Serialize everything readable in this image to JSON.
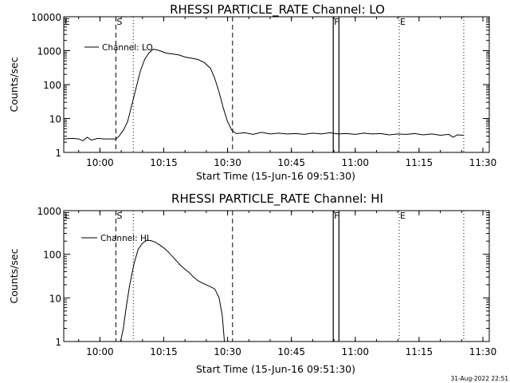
{
  "footer": {
    "timestamp": "31-Aug-2022 22:51"
  },
  "chart_data": [
    {
      "type": "line",
      "title": "RHESSI PARTICLE_RATE Channel: LO",
      "xlabel": "Start Time (15-Jun-16 09:51:30)",
      "ylabel": "Counts/sec",
      "yscale": "log",
      "x_unit": "time HH:MM",
      "xlim": [
        "09:51:30",
        "11:31:30"
      ],
      "ylim": [
        1,
        10000
      ],
      "x_ticks": [
        "10:00",
        "10:15",
        "10:30",
        "10:45",
        "11:00",
        "11:15",
        "11:30"
      ],
      "y_ticks": [
        {
          "value": 1,
          "label": "1"
        },
        {
          "value": 10,
          "label": "10"
        },
        {
          "value": 100,
          "label": "100"
        },
        {
          "value": 1000,
          "label": "1000"
        },
        {
          "value": 10000,
          "label": "10000"
        }
      ],
      "grid": false,
      "legend": {
        "position": "top-left",
        "entries": [
          "Channel: LO"
        ]
      },
      "markers": [
        {
          "label": "E",
          "x": "09:51:30",
          "style": "none"
        },
        {
          "label": "S",
          "x": "10:03:45",
          "style": "dashed"
        },
        {
          "label": "",
          "x": "10:07:50",
          "style": "dotted"
        },
        {
          "label": "",
          "x": "10:31:10",
          "style": "dashed"
        },
        {
          "label": "F",
          "x": "10:54:50",
          "style": "solid"
        },
        {
          "label": "",
          "x": "10:56:10",
          "style": "solid"
        },
        {
          "label": "E",
          "x": "11:10:20",
          "style": "dotted"
        },
        {
          "label": "",
          "x": "11:25:30",
          "style": "dotted"
        }
      ],
      "series": [
        {
          "name": "Channel: LO",
          "points": [
            [
              "09:51:30",
              2.5
            ],
            [
              "09:53:30",
              2.6
            ],
            [
              "09:55:00",
              2.5
            ],
            [
              "09:56:00",
              2.2
            ],
            [
              "09:57:00",
              2.8
            ],
            [
              "09:58:00",
              2.3
            ],
            [
              "09:59:30",
              2.6
            ],
            [
              "10:01:00",
              2.5
            ],
            [
              "10:02:30",
              2.5
            ],
            [
              "10:03:45",
              2.5
            ],
            [
              "10:04:30",
              3.0
            ],
            [
              "10:05:30",
              4.5
            ],
            [
              "10:06:30",
              8
            ],
            [
              "10:07:30",
              25
            ],
            [
              "10:08:30",
              80
            ],
            [
              "10:09:30",
              250
            ],
            [
              "10:10:30",
              550
            ],
            [
              "10:11:30",
              850
            ],
            [
              "10:12:30",
              1100
            ],
            [
              "10:13:30",
              1050
            ],
            [
              "10:14:30",
              950
            ],
            [
              "10:15:30",
              850
            ],
            [
              "10:17:00",
              800
            ],
            [
              "10:18:30",
              750
            ],
            [
              "10:20:00",
              650
            ],
            [
              "10:21:30",
              600
            ],
            [
              "10:23:00",
              550
            ],
            [
              "10:24:30",
              450
            ],
            [
              "10:26:00",
              300
            ],
            [
              "10:27:00",
              150
            ],
            [
              "10:28:00",
              60
            ],
            [
              "10:29:00",
              20
            ],
            [
              "10:30:00",
              8
            ],
            [
              "10:31:00",
              4.5
            ],
            [
              "10:32:00",
              3.6
            ],
            [
              "10:34:00",
              3.8
            ],
            [
              "10:36:00",
              3.4
            ],
            [
              "10:38:00",
              3.9
            ],
            [
              "10:40:00",
              3.5
            ],
            [
              "10:42:00",
              3.7
            ],
            [
              "10:44:00",
              3.5
            ],
            [
              "10:46:00",
              3.6
            ],
            [
              "10:48:00",
              3.4
            ],
            [
              "10:50:00",
              3.7
            ],
            [
              "10:52:00",
              3.5
            ],
            [
              "10:54:00",
              3.8
            ],
            [
              "10:56:00",
              3.5
            ],
            [
              "10:58:00",
              3.6
            ],
            [
              "11:00:00",
              3.4
            ],
            [
              "11:02:00",
              3.7
            ],
            [
              "11:04:00",
              3.5
            ],
            [
              "11:06:00",
              3.6
            ],
            [
              "11:08:00",
              3.3
            ],
            [
              "11:10:00",
              3.5
            ],
            [
              "11:12:00",
              3.4
            ],
            [
              "11:14:00",
              3.6
            ],
            [
              "11:16:00",
              3.3
            ],
            [
              "11:18:00",
              3.5
            ],
            [
              "11:20:00",
              3.2
            ],
            [
              "11:22:00",
              3.4
            ],
            [
              "11:23:00",
              2.8
            ],
            [
              "11:24:00",
              3.3
            ],
            [
              "11:25:30",
              3.2
            ]
          ]
        }
      ]
    },
    {
      "type": "line",
      "title": "RHESSI PARTICLE_RATE Channel: HI",
      "xlabel": "Start Time (15-Jun-16 09:51:30)",
      "ylabel": "Counts/sec",
      "yscale": "log",
      "x_unit": "time HH:MM",
      "xlim": [
        "09:51:30",
        "11:31:30"
      ],
      "ylim": [
        1,
        1000
      ],
      "x_ticks": [
        "10:00",
        "10:15",
        "10:30",
        "10:45",
        "11:00",
        "11:15",
        "11:30"
      ],
      "y_ticks": [
        {
          "value": 1,
          "label": "1"
        },
        {
          "value": 10,
          "label": "10"
        },
        {
          "value": 100,
          "label": "100"
        },
        {
          "value": 1000,
          "label": "1000"
        }
      ],
      "grid": false,
      "legend": {
        "position": "top-left",
        "entries": [
          "Channel: HI"
        ]
      },
      "markers": [
        {
          "label": "E",
          "x": "09:51:30",
          "style": "none"
        },
        {
          "label": "S",
          "x": "10:03:45",
          "style": "dashed"
        },
        {
          "label": "",
          "x": "10:07:50",
          "style": "dotted"
        },
        {
          "label": "",
          "x": "10:31:10",
          "style": "dashed"
        },
        {
          "label": "F",
          "x": "10:54:50",
          "style": "solid"
        },
        {
          "label": "",
          "x": "10:56:10",
          "style": "solid"
        },
        {
          "label": "E",
          "x": "11:10:20",
          "style": "dotted"
        },
        {
          "label": "",
          "x": "11:25:30",
          "style": "dotted"
        }
      ],
      "series": [
        {
          "name": "Channel: HI",
          "points": [
            [
              "10:04:50",
              1.0
            ],
            [
              "10:05:30",
              2.0
            ],
            [
              "10:06:10",
              6
            ],
            [
              "10:07:00",
              20
            ],
            [
              "10:08:00",
              60
            ],
            [
              "10:09:00",
              130
            ],
            [
              "10:10:00",
              180
            ],
            [
              "10:11:00",
              210
            ],
            [
              "10:12:00",
              205
            ],
            [
              "10:13:00",
              190
            ],
            [
              "10:14:00",
              165
            ],
            [
              "10:15:00",
              140
            ],
            [
              "10:16:00",
              115
            ],
            [
              "10:17:00",
              90
            ],
            [
              "10:18:00",
              70
            ],
            [
              "10:19:00",
              55
            ],
            [
              "10:20:00",
              45
            ],
            [
              "10:21:00",
              38
            ],
            [
              "10:22:00",
              30
            ],
            [
              "10:23:00",
              25
            ],
            [
              "10:24:00",
              22
            ],
            [
              "10:25:00",
              20
            ],
            [
              "10:26:00",
              18
            ],
            [
              "10:27:00",
              16
            ],
            [
              "10:28:00",
              10
            ],
            [
              "10:28:45",
              4
            ],
            [
              "10:29:15",
              1.0
            ]
          ]
        }
      ]
    }
  ]
}
